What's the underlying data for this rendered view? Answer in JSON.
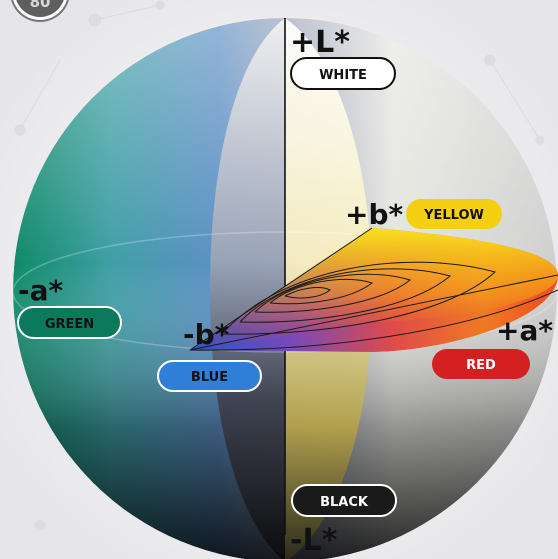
{
  "page_number": "80",
  "axes": {
    "plus_l": "+L*",
    "minus_l": "-L*",
    "plus_a": "+a*",
    "minus_a": "-a*",
    "plus_b": "+b*",
    "minus_b": "-b*"
  },
  "color_labels": {
    "white": "WHITE",
    "black": "BLACK",
    "yellow": "YELLOW",
    "red": "RED",
    "green": "GREEN",
    "blue": "BLUE"
  },
  "colors": {
    "green": "#0a7a5a",
    "blue": "#2f7fd8",
    "yellow": "#f4cf12",
    "red": "#d42020",
    "black": "#1a1a1a",
    "white": "#ffffff"
  }
}
